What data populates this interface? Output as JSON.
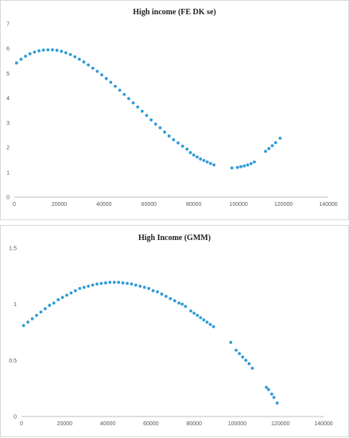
{
  "chart_data": [
    {
      "type": "scatter",
      "title": "High income (FE DK se)",
      "xlabel": "",
      "ylabel": "",
      "xlim": [
        0,
        140000
      ],
      "ylim": [
        0,
        7
      ],
      "x_ticks": [
        "0",
        "20000",
        "40000",
        "60000",
        "80000",
        "100000",
        "120000",
        "140000"
      ],
      "y_ticks": [
        "0",
        "1",
        "2",
        "3",
        "4",
        "5",
        "6",
        "7"
      ],
      "grid": false,
      "legend": "none",
      "marker_color": "#2e9bd6",
      "points": [
        [
          1000,
          5.42
        ],
        [
          3000,
          5.57
        ],
        [
          5000,
          5.69
        ],
        [
          7000,
          5.79
        ],
        [
          9000,
          5.86
        ],
        [
          11000,
          5.91
        ],
        [
          13000,
          5.94
        ],
        [
          15000,
          5.95
        ],
        [
          17000,
          5.95
        ],
        [
          19000,
          5.93
        ],
        [
          21000,
          5.89
        ],
        [
          23000,
          5.83
        ],
        [
          25000,
          5.76
        ],
        [
          27000,
          5.67
        ],
        [
          29000,
          5.57
        ],
        [
          31000,
          5.46
        ],
        [
          33000,
          5.34
        ],
        [
          35000,
          5.21
        ],
        [
          37000,
          5.08
        ],
        [
          39000,
          4.94
        ],
        [
          41000,
          4.79
        ],
        [
          43000,
          4.64
        ],
        [
          45000,
          4.48
        ],
        [
          47000,
          4.32
        ],
        [
          49000,
          4.15
        ],
        [
          51000,
          3.98
        ],
        [
          53000,
          3.81
        ],
        [
          55000,
          3.64
        ],
        [
          57000,
          3.47
        ],
        [
          59000,
          3.3
        ],
        [
          61000,
          3.12
        ],
        [
          63000,
          2.95
        ],
        [
          65000,
          2.8
        ],
        [
          67000,
          2.63
        ],
        [
          69000,
          2.47
        ],
        [
          71000,
          2.32
        ],
        [
          73000,
          2.19
        ],
        [
          75000,
          2.06
        ],
        [
          77000,
          1.94
        ],
        [
          78500,
          1.8
        ],
        [
          80000,
          1.7
        ],
        [
          81500,
          1.62
        ],
        [
          83000,
          1.54
        ],
        [
          84500,
          1.48
        ],
        [
          86000,
          1.42
        ],
        [
          87500,
          1.36
        ],
        [
          89000,
          1.3
        ],
        [
          97000,
          1.18
        ],
        [
          99500,
          1.2
        ],
        [
          101000,
          1.23
        ],
        [
          102500,
          1.26
        ],
        [
          104000,
          1.3
        ],
        [
          105500,
          1.35
        ],
        [
          107000,
          1.42
        ],
        [
          112000,
          1.85
        ],
        [
          113500,
          1.96
        ],
        [
          115000,
          2.08
        ],
        [
          116500,
          2.2
        ],
        [
          118500,
          2.38
        ]
      ]
    },
    {
      "type": "scatter",
      "title": "High Income (GMM)",
      "xlabel": "",
      "ylabel": "",
      "xlim": [
        0,
        140000
      ],
      "ylim": [
        0,
        1.5
      ],
      "x_ticks": [
        "0",
        "20000",
        "40000",
        "60000",
        "80000",
        "100000",
        "120000",
        "140000"
      ],
      "y_ticks": [
        "0",
        "0.5",
        "1",
        "1.5"
      ],
      "grid": false,
      "legend": "none",
      "marker_color": "#2e9bd6",
      "points": [
        [
          1000,
          0.81
        ],
        [
          3000,
          0.84
        ],
        [
          5000,
          0.87
        ],
        [
          7000,
          0.9
        ],
        [
          9000,
          0.93
        ],
        [
          11000,
          0.96
        ],
        [
          13000,
          0.99
        ],
        [
          15000,
          1.01
        ],
        [
          17000,
          1.04
        ],
        [
          19000,
          1.06
        ],
        [
          21000,
          1.08
        ],
        [
          23000,
          1.1
        ],
        [
          25000,
          1.12
        ],
        [
          27000,
          1.14
        ],
        [
          29000,
          1.15
        ],
        [
          31000,
          1.16
        ],
        [
          33000,
          1.17
        ],
        [
          35000,
          1.18
        ],
        [
          37000,
          1.185
        ],
        [
          39000,
          1.19
        ],
        [
          41000,
          1.195
        ],
        [
          43000,
          1.195
        ],
        [
          45000,
          1.195
        ],
        [
          47000,
          1.19
        ],
        [
          49000,
          1.185
        ],
        [
          51000,
          1.18
        ],
        [
          53000,
          1.17
        ],
        [
          55000,
          1.16
        ],
        [
          57000,
          1.15
        ],
        [
          59000,
          1.14
        ],
        [
          61000,
          1.12
        ],
        [
          63000,
          1.11
        ],
        [
          65000,
          1.09
        ],
        [
          67000,
          1.07
        ],
        [
          69000,
          1.05
        ],
        [
          71000,
          1.03
        ],
        [
          73000,
          1.01
        ],
        [
          74500,
          1.0
        ],
        [
          76000,
          0.98
        ],
        [
          78500,
          0.94
        ],
        [
          80000,
          0.92
        ],
        [
          81500,
          0.9
        ],
        [
          83000,
          0.88
        ],
        [
          84500,
          0.86
        ],
        [
          86000,
          0.84
        ],
        [
          87500,
          0.82
        ],
        [
          89000,
          0.8
        ],
        [
          97000,
          0.66
        ],
        [
          99500,
          0.59
        ],
        [
          101000,
          0.56
        ],
        [
          102500,
          0.53
        ],
        [
          104000,
          0.5
        ],
        [
          105500,
          0.47
        ],
        [
          107000,
          0.43
        ],
        [
          113500,
          0.26
        ],
        [
          114500,
          0.24
        ],
        [
          116000,
          0.2
        ],
        [
          117000,
          0.17
        ],
        [
          118500,
          0.12
        ]
      ]
    }
  ]
}
